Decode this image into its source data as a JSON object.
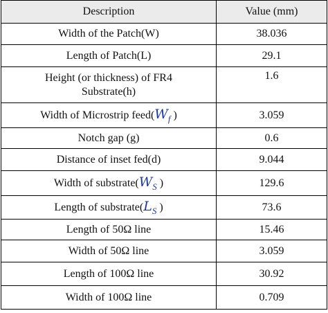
{
  "table": {
    "header": [
      "Description",
      "Value (mm)"
    ],
    "rows": [
      {
        "description": "Width of the Patch(W)",
        "value": "38.036"
      },
      {
        "description": "Length of Patch(L)",
        "value": "29.1"
      },
      {
        "description": "Height (or thickness) of FR4 Substrate(h)",
        "value": "1.6"
      },
      {
        "description": "Width of Microstrip feed(",
        "symbol": "W",
        "subscript": "f",
        "close": ")",
        "value": "3.059"
      },
      {
        "description": "Notch gap (g)",
        "value": "0.6"
      },
      {
        "description": "Distance of inset fed(d)",
        "value": "9.044"
      },
      {
        "description": "Width of substrate(",
        "symbol": "W",
        "subscript": "S",
        "close": ")",
        "value": "129.6"
      },
      {
        "description": "Length of substrate(",
        "symbol": "L",
        "subscript": "S",
        "close": ")",
        "value": "73.6"
      },
      {
        "description": "Length of 50Ω line",
        "value": "15.46"
      },
      {
        "description": "Width of 50Ω line",
        "value": "3.059"
      },
      {
        "description": "Length of 100Ω line",
        "value": "30.92"
      },
      {
        "description": "Width of 100Ω line",
        "value": "0.709"
      }
    ]
  }
}
